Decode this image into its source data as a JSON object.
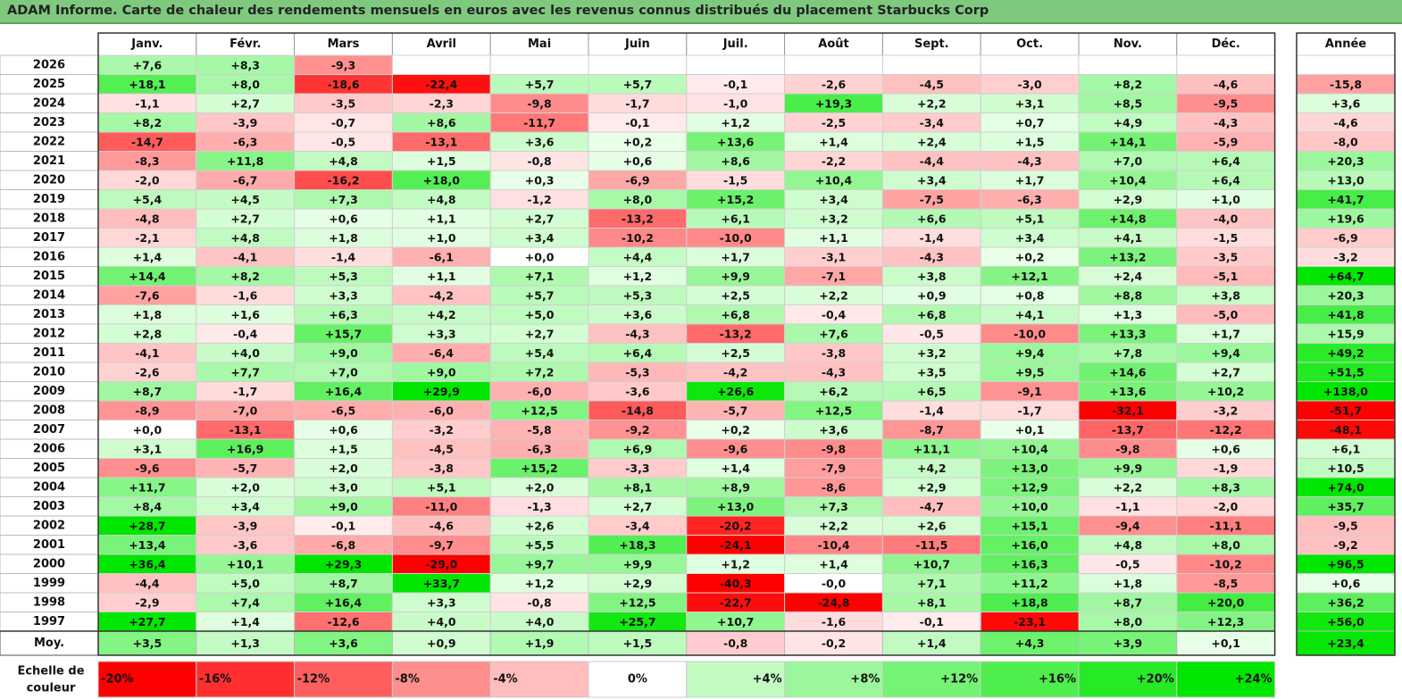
{
  "title": "ADAM Informe. Carte de chaleur des rendements mensuels en euros avec les revenus connus distribués du placement Starbucks Corp",
  "chart_data": {
    "type": "heatmap",
    "months": [
      "Janv.",
      "Févr.",
      "Mars",
      "Avril",
      "Mai",
      "Juin",
      "Juil.",
      "Août",
      "Sept.",
      "Oct.",
      "Nov.",
      "Déc."
    ],
    "year_header": "Année",
    "average_label": "Moy.",
    "scale_title": "Echelle de couleur",
    "rows": [
      {
        "year": "2026",
        "values": [
          "+7,6",
          "+8,3",
          "-9,3",
          "",
          "",
          "",
          "",
          "",
          "",
          "",
          "",
          ""
        ],
        "year_total": ""
      },
      {
        "year": "2025",
        "values": [
          "+18,1",
          "+8,0",
          "-18,6",
          "-22,4",
          "+5,7",
          "+5,7",
          "-0,1",
          "-2,6",
          "-4,5",
          "-3,0",
          "+8,2",
          "-4,6"
        ],
        "year_total": "-15,8"
      },
      {
        "year": "2024",
        "values": [
          "-1,1",
          "+2,7",
          "-3,5",
          "-2,3",
          "-9,8",
          "-1,7",
          "-1,0",
          "+19,3",
          "+2,2",
          "+3,1",
          "+8,5",
          "-9,5"
        ],
        "year_total": "+3,6"
      },
      {
        "year": "2023",
        "values": [
          "+8,2",
          "-3,9",
          "-0,7",
          "+8,6",
          "-11,7",
          "-0,1",
          "+1,2",
          "-2,5",
          "-3,4",
          "+0,7",
          "+4,9",
          "-4,3"
        ],
        "year_total": "-4,6"
      },
      {
        "year": "2022",
        "values": [
          "-14,7",
          "-6,3",
          "-0,5",
          "-13,1",
          "+3,6",
          "+0,2",
          "+13,6",
          "+1,4",
          "+2,4",
          "+1,5",
          "+14,1",
          "-5,9"
        ],
        "year_total": "-8,0"
      },
      {
        "year": "2021",
        "values": [
          "-8,3",
          "+11,8",
          "+4,8",
          "+1,5",
          "-0,8",
          "+0,6",
          "+8,6",
          "-2,2",
          "-4,4",
          "-4,3",
          "+7,0",
          "+6,4"
        ],
        "year_total": "+20,3"
      },
      {
        "year": "2020",
        "values": [
          "-2,0",
          "-6,7",
          "-16,2",
          "+18,0",
          "+0,3",
          "-6,9",
          "-1,5",
          "+10,4",
          "+3,4",
          "+1,7",
          "+10,4",
          "+6,4"
        ],
        "year_total": "+13,0"
      },
      {
        "year": "2019",
        "values": [
          "+5,4",
          "+4,5",
          "+7,3",
          "+4,8",
          "-1,2",
          "+8,0",
          "+15,2",
          "+3,4",
          "-7,5",
          "-6,3",
          "+2,9",
          "+1,0"
        ],
        "year_total": "+41,7"
      },
      {
        "year": "2018",
        "values": [
          "-4,8",
          "+2,7",
          "+0,6",
          "+1,1",
          "+2,7",
          "-13,2",
          "+6,1",
          "+3,2",
          "+6,6",
          "+5,1",
          "+14,8",
          "-4,0"
        ],
        "year_total": "+19,6"
      },
      {
        "year": "2017",
        "values": [
          "-2,1",
          "+4,8",
          "+1,8",
          "+1,0",
          "+3,4",
          "-10,2",
          "-10,0",
          "+1,1",
          "-1,4",
          "+3,4",
          "+4,1",
          "-1,5"
        ],
        "year_total": "-6,9"
      },
      {
        "year": "2016",
        "values": [
          "+1,4",
          "-4,1",
          "-1,4",
          "-6,1",
          "+0,0",
          "+4,4",
          "+1,7",
          "-3,1",
          "-4,3",
          "+0,2",
          "+13,2",
          "-3,5"
        ],
        "year_total": "-3,2"
      },
      {
        "year": "2015",
        "values": [
          "+14,4",
          "+8,2",
          "+5,3",
          "+1,1",
          "+7,1",
          "+1,2",
          "+9,9",
          "-7,1",
          "+3,8",
          "+12,1",
          "+2,4",
          "-5,1"
        ],
        "year_total": "+64,7"
      },
      {
        "year": "2014",
        "values": [
          "-7,6",
          "-1,6",
          "+3,3",
          "-4,2",
          "+5,7",
          "+5,3",
          "+2,5",
          "+2,2",
          "+0,9",
          "+0,8",
          "+8,8",
          "+3,8"
        ],
        "year_total": "+20,3"
      },
      {
        "year": "2013",
        "values": [
          "+1,8",
          "+1,6",
          "+6,3",
          "+4,2",
          "+5,0",
          "+3,6",
          "+6,8",
          "-0,4",
          "+6,8",
          "+4,1",
          "+1,3",
          "-5,0"
        ],
        "year_total": "+41,8"
      },
      {
        "year": "2012",
        "values": [
          "+2,8",
          "-0,4",
          "+15,7",
          "+3,3",
          "+2,7",
          "-4,3",
          "-13,2",
          "+7,6",
          "-0,5",
          "-10,0",
          "+13,3",
          "+1,7"
        ],
        "year_total": "+15,9"
      },
      {
        "year": "2011",
        "values": [
          "-4,1",
          "+4,0",
          "+9,0",
          "-6,4",
          "+5,4",
          "+6,4",
          "+2,5",
          "-3,8",
          "+3,2",
          "+9,4",
          "+7,8",
          "+9,4"
        ],
        "year_total": "+49,2"
      },
      {
        "year": "2010",
        "values": [
          "-2,6",
          "+7,7",
          "+7,0",
          "+9,0",
          "+7,2",
          "-5,3",
          "-4,2",
          "-4,3",
          "+3,5",
          "+9,5",
          "+14,6",
          "+2,7"
        ],
        "year_total": "+51,5"
      },
      {
        "year": "2009",
        "values": [
          "+8,7",
          "-1,7",
          "+16,4",
          "+29,9",
          "-6,0",
          "-3,6",
          "+26,6",
          "+6,2",
          "+6,5",
          "-9,1",
          "+13,6",
          "+10,2"
        ],
        "year_total": "+138,0"
      },
      {
        "year": "2008",
        "values": [
          "-8,9",
          "-7,0",
          "-6,5",
          "-6,0",
          "+12,5",
          "-14,8",
          "-5,7",
          "+12,5",
          "-1,4",
          "-1,7",
          "-32,1",
          "-3,2"
        ],
        "year_total": "-51,7"
      },
      {
        "year": "2007",
        "values": [
          "+0,0",
          "-13,1",
          "+0,6",
          "-3,2",
          "-5,8",
          "-9,2",
          "+0,2",
          "+3,6",
          "-8,7",
          "+0,1",
          "-13,7",
          "-12,2"
        ],
        "year_total": "-48,1"
      },
      {
        "year": "2006",
        "values": [
          "+3,1",
          "+16,9",
          "+1,5",
          "-4,5",
          "-6,3",
          "+6,9",
          "-9,6",
          "-9,8",
          "+11,1",
          "+10,4",
          "-9,8",
          "+0,6"
        ],
        "year_total": "+6,1"
      },
      {
        "year": "2005",
        "values": [
          "-9,6",
          "-5,7",
          "+2,0",
          "-3,8",
          "+15,2",
          "-3,3",
          "+1,4",
          "-7,9",
          "+4,2",
          "+13,0",
          "+9,9",
          "-1,9"
        ],
        "year_total": "+10,5"
      },
      {
        "year": "2004",
        "values": [
          "+11,7",
          "+2,0",
          "+3,0",
          "+5,1",
          "+2,0",
          "+8,1",
          "+8,9",
          "-8,6",
          "+2,9",
          "+12,9",
          "+2,2",
          "+8,3"
        ],
        "year_total": "+74,0"
      },
      {
        "year": "2003",
        "values": [
          "+8,4",
          "+3,4",
          "+9,0",
          "-11,0",
          "-1,3",
          "+2,7",
          "+13,0",
          "+7,3",
          "-4,7",
          "+10,0",
          "-1,1",
          "-2,0"
        ],
        "year_total": "+35,7"
      },
      {
        "year": "2002",
        "values": [
          "+28,7",
          "-3,9",
          "-0,1",
          "-4,6",
          "+2,6",
          "-3,4",
          "-20,2",
          "+2,2",
          "+2,6",
          "+15,1",
          "-9,4",
          "-11,1"
        ],
        "year_total": "-9,5"
      },
      {
        "year": "2001",
        "values": [
          "+13,4",
          "-3,6",
          "-6,8",
          "-9,7",
          "+5,5",
          "+18,3",
          "-24,1",
          "-10,4",
          "-11,5",
          "+16,0",
          "+4,8",
          "+8,0"
        ],
        "year_total": "-9,2"
      },
      {
        "year": "2000",
        "values": [
          "+36,4",
          "+10,1",
          "+29,3",
          "-29,0",
          "+9,7",
          "+9,9",
          "+1,2",
          "+1,4",
          "+10,7",
          "+16,3",
          "-0,5",
          "-10,2"
        ],
        "year_total": "+96,5"
      },
      {
        "year": "1999",
        "values": [
          "-4,4",
          "+5,0",
          "+8,7",
          "+33,7",
          "+1,2",
          "+2,9",
          "-40,3",
          "-0,0",
          "+7,1",
          "+11,2",
          "+1,8",
          "-8,5"
        ],
        "year_total": "+0,6"
      },
      {
        "year": "1998",
        "values": [
          "-2,9",
          "+7,4",
          "+16,4",
          "+3,3",
          "-0,8",
          "+12,5",
          "-22,7",
          "-24,8",
          "+8,1",
          "+18,8",
          "+8,7",
          "+20,0"
        ],
        "year_total": "+36,2"
      },
      {
        "year": "1997",
        "values": [
          "+27,7",
          "+1,4",
          "-12,6",
          "+4,0",
          "+4,0",
          "+25,7",
          "+10,7",
          "-1,6",
          "-0,1",
          "-23,1",
          "+8,0",
          "+12,3"
        ],
        "year_total": "+56,0"
      }
    ],
    "average": {
      "values": [
        "+3,5",
        "+1,3",
        "+3,6",
        "+0,9",
        "+1,9",
        "+1,5",
        "-0,8",
        "-0,2",
        "+1,4",
        "+4,3",
        "+3,9",
        "+0,1"
      ],
      "year_total": "+23,4"
    },
    "scale": [
      {
        "label": "-20%",
        "value": -20
      },
      {
        "label": "-16%",
        "value": -16
      },
      {
        "label": "-12%",
        "value": -12
      },
      {
        "label": "-8%",
        "value": -8
      },
      {
        "label": "-4%",
        "value": -4
      },
      {
        "label": "0%",
        "value": 0
      },
      {
        "label": "+4%",
        "value": 4
      },
      {
        "label": "+8%",
        "value": 8
      },
      {
        "label": "+12%",
        "value": 12
      },
      {
        "label": "+16%",
        "value": 16
      },
      {
        "label": "+20%",
        "value": 20
      },
      {
        "label": "+24%",
        "value": 24
      }
    ],
    "colors": {
      "negative": "#ff0000",
      "neutral": "#ffffff",
      "positive": "#00e600",
      "title_bg": "#7fc97f"
    }
  }
}
